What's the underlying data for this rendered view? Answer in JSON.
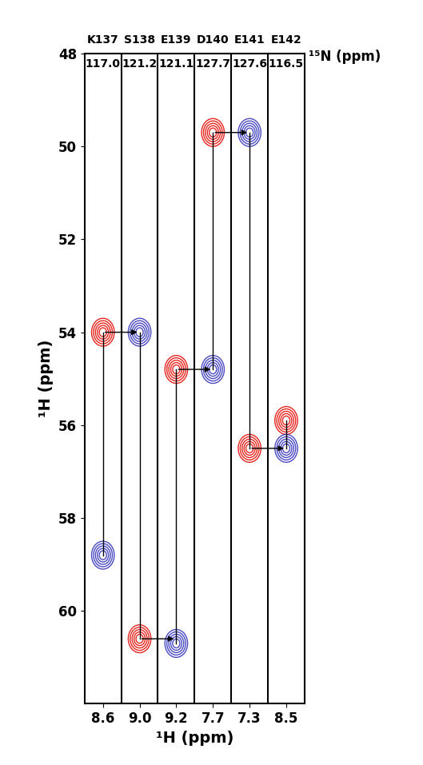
{
  "chart_data": {
    "type": "strip",
    "categories": [
      "K137",
      "S138",
      "E139",
      "D140",
      "E141",
      "E142"
    ],
    "nitrogen_shifts": [
      117.0,
      121.2,
      121.1,
      127.7,
      127.6,
      116.5
    ],
    "nitrogen_label": "¹⁵N (ppm)",
    "proton_shifts": [
      8.6,
      9.0,
      9.2,
      7.7,
      7.3,
      8.5
    ],
    "x_label": "¹H (ppm)",
    "y_label": "¹H (ppm)",
    "ylim": [
      62,
      48
    ],
    "yticks": [
      48,
      50,
      52,
      54,
      56,
      58,
      60
    ],
    "series": [
      {
        "color": "#e8251e",
        "values": [
          54.0,
          60.6,
          54.8,
          49.7,
          56.5,
          55.9
        ]
      },
      {
        "color": "#2a2ab8",
        "values": [
          58.8,
          54.0,
          60.7,
          54.8,
          49.7,
          56.5
        ]
      }
    ]
  }
}
